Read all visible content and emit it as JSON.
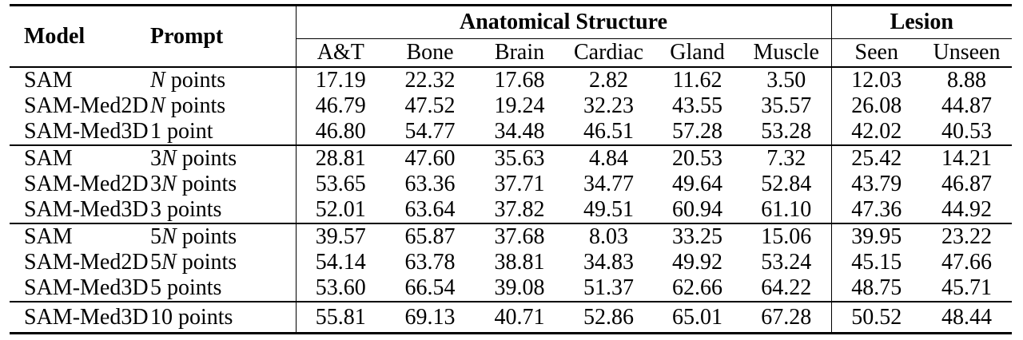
{
  "colors": {
    "background": "#ffffff",
    "text": "#000000",
    "rules": "#000000"
  },
  "table": {
    "header": {
      "model": "Model",
      "prompt": "Prompt",
      "groups": [
        {
          "label": "Anatomical Structure",
          "cols": [
            "A&T",
            "Bone",
            "Brain",
            "Cardiac",
            "Gland",
            "Muscle"
          ]
        },
        {
          "label": "Lesion",
          "cols": [
            "Seen",
            "Unseen"
          ]
        }
      ]
    },
    "row_groups": [
      {
        "rows": [
          {
            "model": "SAM",
            "prompt": {
              "pre": "",
              "n": "N",
              "post": " points"
            },
            "values": [
              "17.19",
              "22.32",
              "17.68",
              "2.82",
              "11.62",
              "3.50",
              "12.03",
              "8.88"
            ]
          },
          {
            "model": "SAM-Med2D",
            "prompt": {
              "pre": "",
              "n": "N",
              "post": " points"
            },
            "values": [
              "46.79",
              "47.52",
              "19.24",
              "32.23",
              "43.55",
              "35.57",
              "26.08",
              "44.87"
            ]
          },
          {
            "model": "SAM-Med3D",
            "prompt": {
              "pre": "1 point",
              "n": "",
              "post": ""
            },
            "values": [
              "46.80",
              "54.77",
              "34.48",
              "46.51",
              "57.28",
              "53.28",
              "42.02",
              "40.53"
            ]
          }
        ]
      },
      {
        "rows": [
          {
            "model": "SAM",
            "prompt": {
              "pre": "3",
              "n": "N",
              "post": " points"
            },
            "values": [
              "28.81",
              "47.60",
              "35.63",
              "4.84",
              "20.53",
              "7.32",
              "25.42",
              "14.21"
            ]
          },
          {
            "model": "SAM-Med2D",
            "prompt": {
              "pre": "3",
              "n": "N",
              "post": " points"
            },
            "values": [
              "53.65",
              "63.36",
              "37.71",
              "34.77",
              "49.64",
              "52.84",
              "43.79",
              "46.87"
            ]
          },
          {
            "model": "SAM-Med3D",
            "prompt": {
              "pre": "3 points",
              "n": "",
              "post": ""
            },
            "values": [
              "52.01",
              "63.64",
              "37.82",
              "49.51",
              "60.94",
              "61.10",
              "47.36",
              "44.92"
            ]
          }
        ]
      },
      {
        "rows": [
          {
            "model": "SAM",
            "prompt": {
              "pre": "5",
              "n": "N",
              "post": " points"
            },
            "values": [
              "39.57",
              "65.87",
              "37.68",
              "8.03",
              "33.25",
              "15.06",
              "39.95",
              "23.22"
            ]
          },
          {
            "model": "SAM-Med2D",
            "prompt": {
              "pre": "5",
              "n": "N",
              "post": " points"
            },
            "values": [
              "54.14",
              "63.78",
              "38.81",
              "34.83",
              "49.92",
              "53.24",
              "45.15",
              "47.66"
            ]
          },
          {
            "model": "SAM-Med3D",
            "prompt": {
              "pre": "5 points",
              "n": "",
              "post": ""
            },
            "values": [
              "53.60",
              "66.54",
              "39.08",
              "51.37",
              "62.66",
              "64.22",
              "48.75",
              "45.71"
            ]
          }
        ]
      },
      {
        "rows": [
          {
            "model": "SAM-Med3D",
            "prompt": {
              "pre": "10 points",
              "n": "",
              "post": ""
            },
            "values": [
              "55.81",
              "69.13",
              "40.71",
              "52.86",
              "65.01",
              "67.28",
              "50.52",
              "48.44"
            ]
          }
        ]
      }
    ]
  }
}
